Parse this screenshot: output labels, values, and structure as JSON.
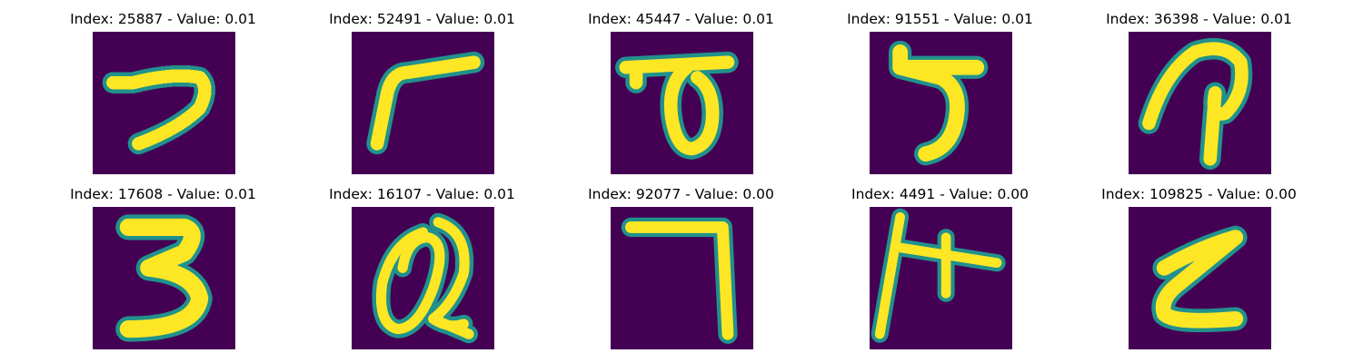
{
  "colors": {
    "background": "#440154",
    "mid": "#21918c",
    "foreground": "#fde725"
  },
  "grid": [
    {
      "title": "Index: 25887 - Value: 0.01",
      "glyph": "7"
    },
    {
      "title": "Index: 52491 - Value: 0.01",
      "glyph": "r"
    },
    {
      "title": "Index: 45447 - Value: 0.01",
      "glyph": "ठ"
    },
    {
      "title": "Index: 91551 - Value: 0.01",
      "glyph": "5"
    },
    {
      "title": "Index: 36398 - Value: 0.01",
      "glyph": "P"
    },
    {
      "title": "Index: 17608 - Value: 0.01",
      "glyph": "3"
    },
    {
      "title": "Index: 16107 - Value: 0.01",
      "glyph": "@"
    },
    {
      "title": "Index: 92077 - Value: 0.00",
      "glyph": "7"
    },
    {
      "title": "Index: 4491 - Value: 0.00",
      "glyph": "H"
    },
    {
      "title": "Index: 109825 - Value: 0.00",
      "glyph": "Z"
    }
  ]
}
